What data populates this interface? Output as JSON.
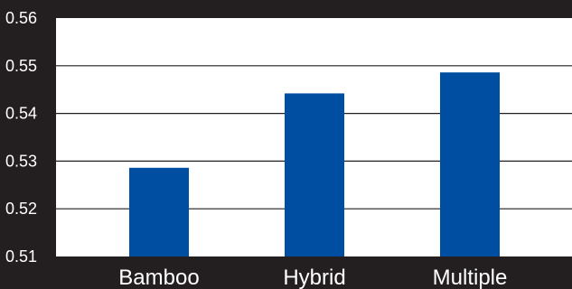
{
  "chart_data": {
    "type": "bar",
    "categories": [
      "Bamboo",
      "Hybrid",
      "Multiple"
    ],
    "values": [
      0.5286,
      0.5442,
      0.5486
    ],
    "ylim": [
      0.51,
      0.56
    ],
    "yticks": [
      "0.51",
      "0.52",
      "0.53",
      "0.54",
      "0.55",
      "0.56"
    ],
    "ytick_values": [
      0.51,
      0.52,
      0.53,
      0.54,
      0.55,
      0.56
    ],
    "grid": true,
    "title": "",
    "xlabel": "",
    "ylabel": "",
    "colors": {
      "bar": "#004ea2",
      "plot_background": "#ffffff",
      "page_background": "#231f20",
      "grid": "#231f20",
      "text": "#ffffff"
    }
  }
}
